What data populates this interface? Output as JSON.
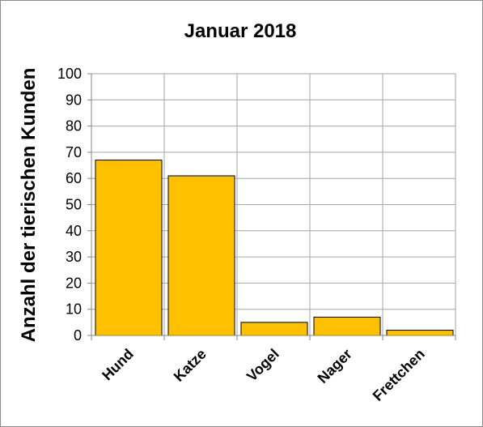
{
  "chart_data": {
    "type": "bar",
    "title": "Januar 2018",
    "xlabel": "",
    "ylabel": "Anzahl der tierischen Kunden",
    "categories": [
      "Hund",
      "Katze",
      "Vogel",
      "Nager",
      "Frettchen"
    ],
    "values": [
      67,
      61,
      5,
      7,
      2
    ],
    "ylim": [
      0,
      100
    ],
    "yticks": [
      0,
      10,
      20,
      30,
      40,
      50,
      60,
      70,
      80,
      90,
      100
    ],
    "grid": true,
    "legend": "none",
    "bar_color": "#ffc000",
    "bar_edge_color": "#000000",
    "grid_color": "#a6a6a6"
  }
}
